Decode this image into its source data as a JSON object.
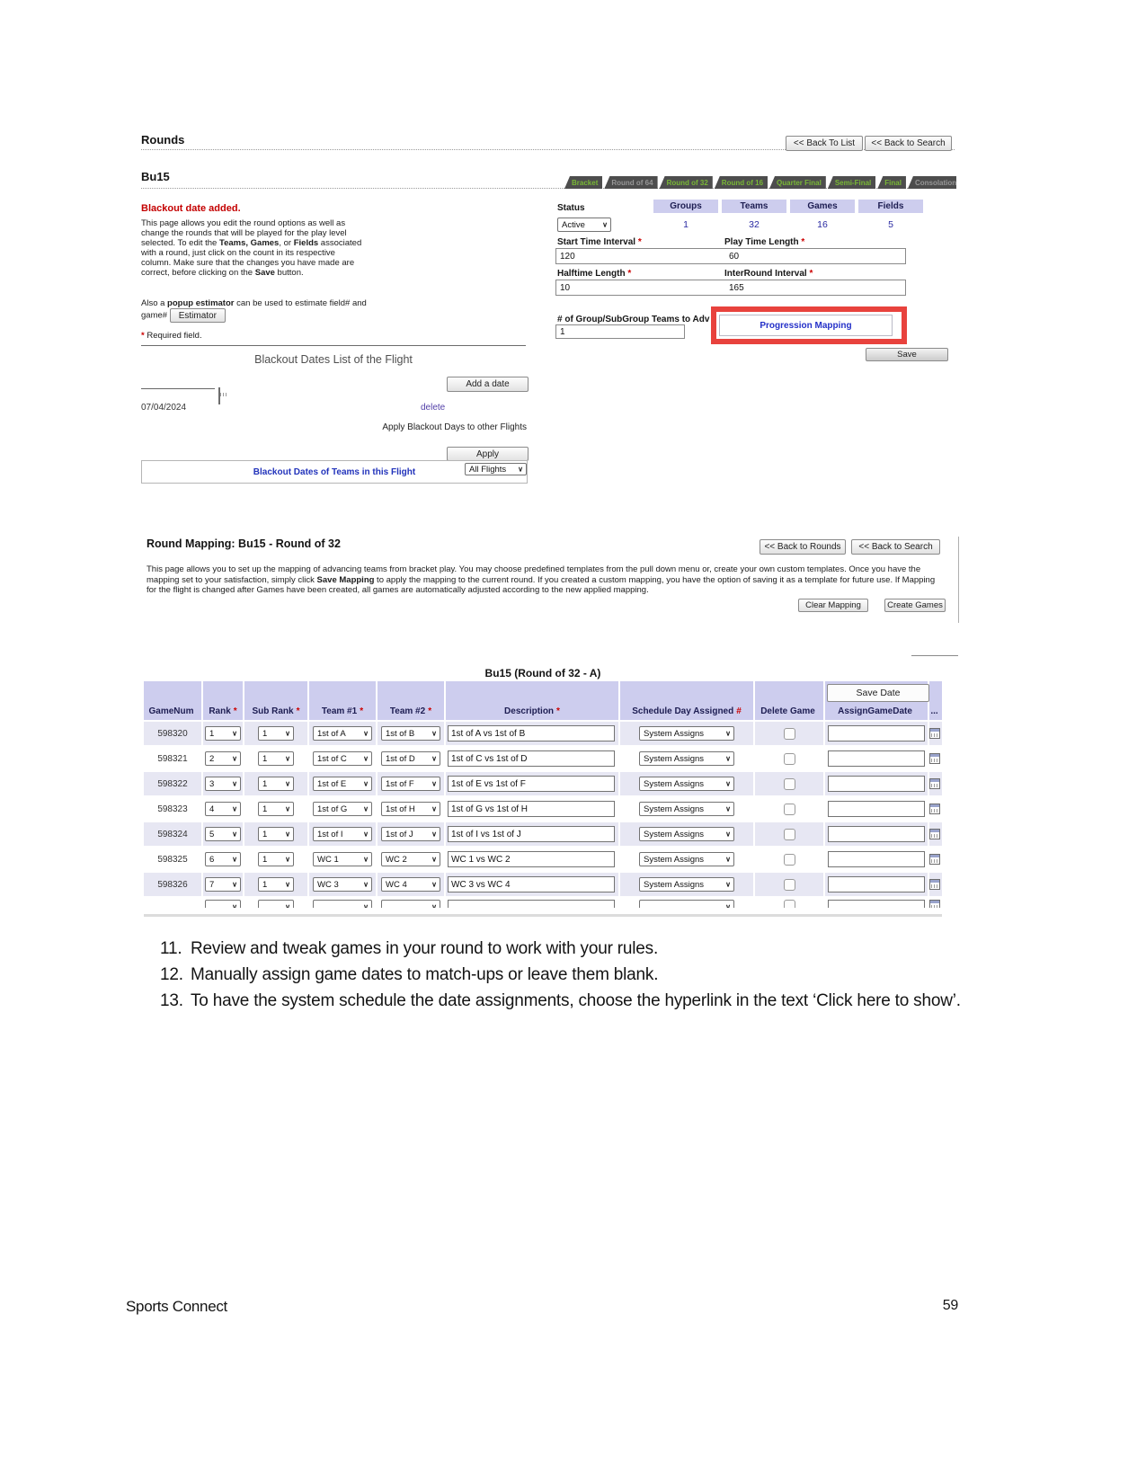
{
  "rounds_panel": {
    "title": "Rounds",
    "back_to_list": "<< Back To List",
    "back_to_search": "<< Back to Search",
    "flight_title": "Bu15",
    "alert": "Blackout date added.",
    "para1": [
      {
        "t": "This page allows you edit the round options as well as change the rounds that will be played for the play level selected. To edit the "
      },
      {
        "t": "Teams, Games",
        "b": true
      },
      {
        "t": ", or "
      },
      {
        "t": "Fields",
        "b": true
      },
      {
        "t": " associated with a round, just click on the count in its respective column. Make sure that the changes you have made are correct, before clicking on the "
      },
      {
        "t": "Save",
        "b": true
      },
      {
        "t": " button."
      }
    ],
    "para2": [
      {
        "t": "Also a "
      },
      {
        "t": "popup estimator",
        "b": true
      },
      {
        "t": " can be used to estimate field# and game# "
      }
    ],
    "estimator_button": "Estimator",
    "required_note": {
      "mark": "*",
      "text": "Required field."
    },
    "tabs": [
      {
        "label": "Bracket",
        "state": "on"
      },
      {
        "label": "Round of 64",
        "state": "dim"
      },
      {
        "label": "Round of 32",
        "state": "on"
      },
      {
        "label": "Round of 16",
        "state": "on"
      },
      {
        "label": "Quarter Final",
        "state": "on"
      },
      {
        "label": "Semi-Final",
        "state": "on"
      },
      {
        "label": "Final",
        "state": "on"
      },
      {
        "label": "Consolation",
        "state": "dim"
      }
    ],
    "status_label": "Status",
    "status_value": "Active",
    "counts": [
      {
        "label": "Groups",
        "value": "1"
      },
      {
        "label": "Teams",
        "value": "32"
      },
      {
        "label": "Games",
        "value": "16"
      },
      {
        "label": "Fields",
        "value": "5"
      }
    ],
    "fields": [
      {
        "label": "Start Time Interval",
        "mark": "*",
        "value": "120"
      },
      {
        "label": "Play Time Length",
        "mark": "*",
        "value": "60"
      },
      {
        "label": "Halftime Length",
        "mark": "*",
        "value": "10"
      },
      {
        "label": "InterRound Interval",
        "mark": "*",
        "value": "165"
      }
    ],
    "adv_label": "# of Group/SubGroup Teams to Adv",
    "adv_mark": "*",
    "adv_value": "1",
    "progression_mapping": "Progression Mapping",
    "save_button": "Save",
    "blackout": {
      "title": "Blackout Dates List of the Flight",
      "add_button": "Add a date",
      "date": "07/04/2024",
      "delete_link": "delete",
      "apply_label": "Apply Blackout Days to other Flights",
      "apply_select": "All Flights",
      "apply_button": "Apply",
      "teams_link": "Blackout Dates of Teams in this Flight"
    }
  },
  "mapping_panel": {
    "title": "Round Mapping: Bu15 - Round of 32",
    "back_to_rounds": "<< Back to Rounds",
    "back_to_search": "<< Back to Search",
    "description": [
      {
        "t": "This page allows you to set up the mapping of advancing teams from bracket play. You may choose predefined templates from the pull down menu or, create your own custom templates. Once you have the mapping set to your satisfaction, simply click "
      },
      {
        "t": "Save Mapping",
        "b": true
      },
      {
        "t": " to apply the mapping to the current round. If you created a custom mapping, you have the option of saving it as a template for future use. If Mapping for the flight is changed after Games have been created, all games are automatically adjusted according to the new applied mapping."
      }
    ],
    "clear_button": "Clear Mapping",
    "create_button": "Create Games"
  },
  "games_table": {
    "title": "Bu15 (Round of 32 - A)",
    "save_date_button": "Save Date",
    "headers": [
      {
        "label": "GameNum",
        "mark": ""
      },
      {
        "label": "Rank",
        "mark": "*"
      },
      {
        "label": "Sub Rank",
        "mark": "*"
      },
      {
        "label": "Team #1",
        "mark": "*"
      },
      {
        "label": "Team #2",
        "mark": "*"
      },
      {
        "label": "Description",
        "mark": "*"
      },
      {
        "label": "Schedule Day Assigned",
        "mark": "#"
      },
      {
        "label": "Delete Game",
        "mark": ""
      },
      {
        "label": "AssignGameDate",
        "mark": ""
      },
      {
        "label": "...",
        "mark": ""
      }
    ],
    "schedule_option": "System Assigns",
    "rows": [
      {
        "game_num": "598320",
        "rank": "1",
        "sub_rank": "1",
        "team1": "1st of A",
        "team2": "1st of B",
        "description": "1st of A vs 1st of B"
      },
      {
        "game_num": "598321",
        "rank": "2",
        "sub_rank": "1",
        "team1": "1st of C",
        "team2": "1st of D",
        "description": "1st of C vs 1st of D"
      },
      {
        "game_num": "598322",
        "rank": "3",
        "sub_rank": "1",
        "team1": "1st of E",
        "team2": "1st of F",
        "description": "1st of E vs 1st of F"
      },
      {
        "game_num": "598323",
        "rank": "4",
        "sub_rank": "1",
        "team1": "1st of G",
        "team2": "1st of H",
        "description": "1st of G vs 1st of H"
      },
      {
        "game_num": "598324",
        "rank": "5",
        "sub_rank": "1",
        "team1": "1st of I",
        "team2": "1st of J",
        "description": "1st of I vs 1st of J"
      },
      {
        "game_num": "598325",
        "rank": "6",
        "sub_rank": "1",
        "team1": "WC 1",
        "team2": "WC 2",
        "description": "WC 1 vs WC 2"
      },
      {
        "game_num": "598326",
        "rank": "7",
        "sub_rank": "1",
        "team1": "WC 3",
        "team2": "WC 4",
        "description": "WC 3 vs WC 4"
      }
    ]
  },
  "instructions": [
    {
      "num": "11.",
      "text": "Review and tweak games in your round to work with your rules."
    },
    {
      "num": "12.",
      "text": "Manually assign game dates to match-ups or leave them blank."
    },
    {
      "num": "13.",
      "text": "To have the system schedule the date assignments, choose the hyperlink in the text ‘Click here to show’."
    }
  ],
  "footer": {
    "left": "Sports Connect",
    "page_number": "59"
  }
}
